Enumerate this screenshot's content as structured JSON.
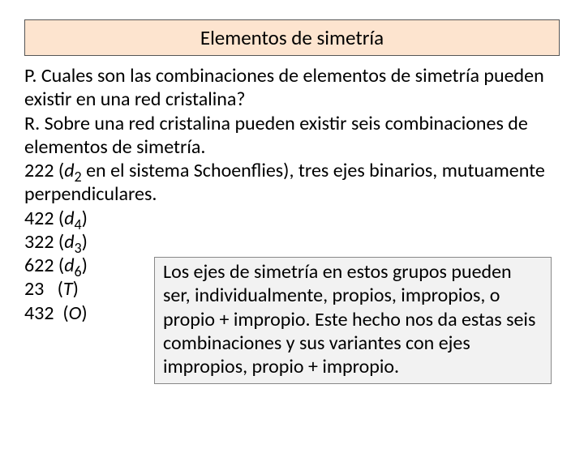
{
  "title": "Elementos de simetría",
  "question": "P. Cuales son las combinaciones de elementos de simetría pueden existir en una red cristalina?",
  "answer": "R. Sobre una red cristalina pueden existir seis combinaciones de elementos de simetría.",
  "first_combo_pre": "222 (",
  "first_combo_sym": "d",
  "first_combo_sub": "2",
  "first_combo_post": " en el sistema Schoenflies), tres ejes binarios, mutuamente perpendiculares.",
  "combos": [
    {
      "pre": "422 (",
      "sym": "d",
      "sub": "4",
      "post": ")"
    },
    {
      "pre": "322 (",
      "sym": "d",
      "sub": "3",
      "post": ")"
    },
    {
      "pre": "622 (",
      "sym": "d",
      "sub": "6",
      "post": ")"
    },
    {
      "pre": "23   (",
      "sym": "T",
      "sub": "",
      "post": ")"
    },
    {
      "pre": "432  (",
      "sym": "O",
      "sub": "",
      "post": ")"
    }
  ],
  "note": "Los ejes de simetría en estos grupos pueden ser, individualmente, propios, impropios, o propio + impropio. Este hecho nos da estas seis combinaciones y sus variantes con ejes impropios, propio + impropio.",
  "colors": {
    "title_bg": "#fde4cf",
    "note_bg": "#f2f2f2",
    "border": "#555"
  }
}
